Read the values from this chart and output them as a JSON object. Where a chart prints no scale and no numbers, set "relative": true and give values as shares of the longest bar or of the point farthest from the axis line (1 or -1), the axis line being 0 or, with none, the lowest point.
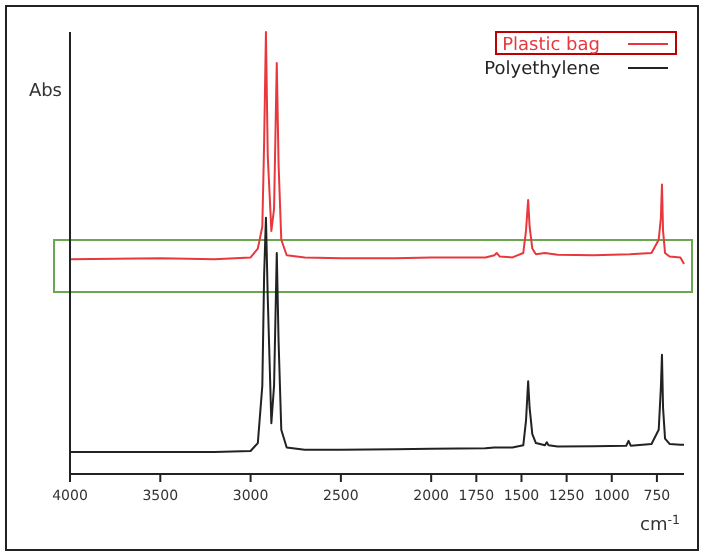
{
  "chart_data": {
    "type": "line",
    "relative": true,
    "xlabel": "cm$^{-1}$",
    "ylabel": "Abs",
    "legend": "top right",
    "grid": false,
    "marker": "none",
    "line_style": "solid",
    "xlim": [
      4000,
      600
    ],
    "xticks": [
      4000,
      3500,
      3000,
      2500,
      2000,
      1750,
      1500,
      1250,
      1000,
      750
    ],
    "series": [
      {
        "name": "Plastic bag",
        "color": "#e8383d",
        "x": [
          4000,
          3500,
          3200,
          3000,
          2960,
          2935,
          2925,
          2915,
          2905,
          2885,
          2870,
          2855,
          2845,
          2830,
          2800,
          2700,
          2500,
          2200,
          2000,
          1700,
          1650,
          1637,
          1620,
          1550,
          1490,
          1475,
          1463,
          1455,
          1440,
          1420,
          1370,
          1300,
          1100,
          900,
          780,
          740,
          728,
          722,
          716,
          705,
          680,
          620,
          600
        ],
        "values": [
          0.486,
          0.488,
          0.486,
          0.49,
          0.51,
          0.56,
          0.75,
          1.0,
          0.72,
          0.55,
          0.6,
          0.93,
          0.7,
          0.53,
          0.495,
          0.49,
          0.488,
          0.488,
          0.49,
          0.49,
          0.495,
          0.5,
          0.492,
          0.49,
          0.5,
          0.55,
          0.62,
          0.56,
          0.51,
          0.497,
          0.5,
          0.496,
          0.495,
          0.497,
          0.5,
          0.53,
          0.58,
          0.655,
          0.55,
          0.5,
          0.492,
          0.49,
          0.475
        ]
      },
      {
        "name": "Polyethylene",
        "color": "#222222",
        "x": [
          4000,
          3500,
          3200,
          3000,
          2960,
          2935,
          2925,
          2915,
          2905,
          2885,
          2870,
          2855,
          2845,
          2830,
          2800,
          2700,
          2500,
          2200,
          2000,
          1700,
          1650,
          1550,
          1490,
          1475,
          1463,
          1455,
          1440,
          1420,
          1370,
          1360,
          1350,
          1300,
          1100,
          920,
          907,
          895,
          780,
          740,
          728,
          722,
          716,
          705,
          680,
          620,
          600
        ],
        "values": [
          0.05,
          0.05,
          0.05,
          0.052,
          0.07,
          0.2,
          0.45,
          0.58,
          0.4,
          0.115,
          0.2,
          0.5,
          0.3,
          0.1,
          0.06,
          0.055,
          0.055,
          0.056,
          0.057,
          0.058,
          0.06,
          0.06,
          0.065,
          0.12,
          0.21,
          0.15,
          0.09,
          0.07,
          0.065,
          0.072,
          0.065,
          0.062,
          0.063,
          0.064,
          0.075,
          0.064,
          0.068,
          0.1,
          0.196,
          0.27,
          0.15,
          0.08,
          0.068,
          0.066,
          0.066
        ]
      }
    ]
  }
}
